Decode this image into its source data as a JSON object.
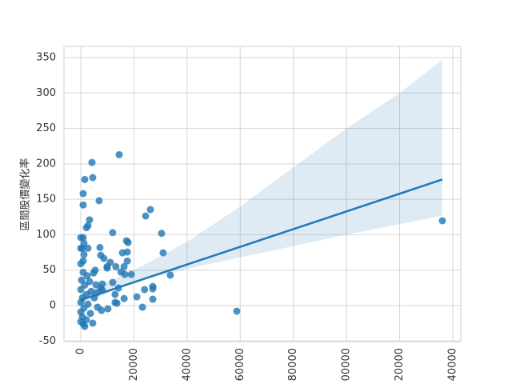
{
  "chart_data": {
    "type": "regplot",
    "y_label": "區間股價變化率",
    "color": "#1f77b4",
    "x": [
      136100,
      58700,
      14450,
      4200,
      4500,
      1500,
      6900,
      900,
      900,
      3300,
      2700,
      2100,
      12000,
      30400,
      26200,
      24400,
      17200,
      17800,
      31000,
      33700,
      17500,
      15700,
      17500,
      16300,
      19000,
      16600,
      15100,
      13200,
      11100,
      8700,
      7500,
      7200,
      9900,
      9900,
      27100,
      27100,
      24000,
      21100,
      16300,
      27100,
      23200,
      12900,
      12900,
      13600,
      14200,
      12000,
      8100,
      8100,
      10200,
      7800,
      4500,
      1500,
      900,
      0,
      600,
      2700,
      1200,
      0,
      900,
      5400,
      4800,
      2400,
      300,
      3300,
      1500,
      0,
      3900,
      2100,
      600,
      5100,
      0,
      2700,
      1200,
      0,
      3600,
      600,
      0,
      2100,
      900,
      6300,
      6000,
      7500,
      5700,
      900,
      0,
      1200
    ],
    "values": [
      119.7,
      -7.9,
      213,
      202,
      180.6,
      178,
      148,
      158,
      142,
      121,
      113,
      110,
      103,
      102,
      135.5,
      126.5,
      91.5,
      89,
      74.5,
      43,
      75.6,
      74.5,
      63,
      55,
      44,
      44,
      47.4,
      55,
      61,
      66.6,
      71,
      82,
      55,
      53,
      27,
      23.7,
      22.6,
      12.4,
      10,
      9,
      -2.3,
      15.8,
      4.5,
      3.4,
      24.8,
      32.7,
      30.5,
      21.5,
      -4.5,
      -6.8,
      -24.8,
      -29.4,
      96,
      96,
      81,
      81,
      72,
      59,
      47,
      50,
      46,
      42,
      36,
      34,
      29,
      22.6,
      20,
      15.8,
      11,
      11,
      4.5,
      2,
      -3.4,
      -9,
      -11,
      -15.8,
      -22.6,
      -20,
      -26,
      -2.3,
      18,
      24.8,
      29.4,
      63,
      81,
      88
    ],
    "fit": {
      "x": [
        0,
        136100
      ],
      "y": [
        8,
        178
      ]
    },
    "ci": {
      "x": [
        0,
        20000,
        40000,
        60000,
        80000,
        100000,
        120000,
        136100
      ],
      "upper": [
        16,
        50,
        90,
        140,
        195,
        250,
        300,
        347
      ],
      "lower": [
        1,
        34,
        52,
        68,
        84,
        100,
        115,
        127
      ]
    },
    "xlim": [
      -6323,
      143030
    ],
    "ylim": [
      -50.8,
      365.8
    ],
    "xticks": [
      0,
      20000,
      40000,
      60000,
      80000,
      {
        "value": 100000,
        "label": "00000"
      },
      {
        "value": 120000,
        "label": "20000"
      },
      {
        "value": 140000,
        "label": "40000"
      }
    ],
    "yticks": [
      -50,
      0,
      50,
      100,
      150,
      200,
      250,
      300,
      350
    ],
    "grid": true
  }
}
